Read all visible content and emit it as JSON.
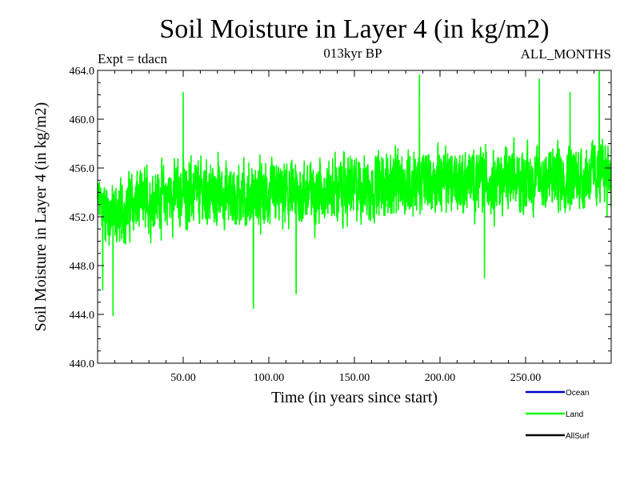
{
  "chart_data": {
    "type": "line",
    "title": "Soil Moisture in Layer 4 (in kg/m2)",
    "experiment_label": "Expt = tdacn",
    "period_label": "013kyr BP",
    "months_label": "ALL_MONTHS",
    "xlabel": "Time (in years since start)",
    "ylabel": "Soil Moisture in Layer 4 (in kg/m2)",
    "xlim": [
      0,
      300
    ],
    "ylim": [
      440,
      464
    ],
    "x_ticks": [
      50,
      100,
      150,
      200,
      250
    ],
    "x_tick_labels": [
      "50.00",
      "100.00",
      "150.00",
      "200.00",
      "250.00"
    ],
    "y_ticks": [
      440,
      444,
      448,
      452,
      456,
      460,
      464
    ],
    "y_tick_labels": [
      "440.0",
      "444.0",
      "448.0",
      "452.0",
      "456.0",
      "460.0",
      "464.0"
    ],
    "grid": false,
    "legend_position": "bottom-right",
    "series": [
      {
        "name": "Ocean",
        "color": "#0000cc",
        "values": []
      },
      {
        "name": "Land",
        "color": "#00ff00",
        "x_start": 0,
        "x_step": 0.0833,
        "trend_points": [
          [
            0,
            453.2
          ],
          [
            10,
            452.0
          ],
          [
            20,
            453.0
          ],
          [
            50,
            454.0
          ],
          [
            100,
            453.6
          ],
          [
            150,
            454.4
          ],
          [
            200,
            455.0
          ],
          [
            250,
            455.0
          ],
          [
            300,
            455.6
          ]
        ],
        "spread": 2.6,
        "extremes": [
          {
            "x": 9,
            "y": 443.9
          },
          {
            "x": 3,
            "y": 446.0
          },
          {
            "x": 91,
            "y": 444.5
          },
          {
            "x": 116,
            "y": 445.7
          },
          {
            "x": 226,
            "y": 447.0
          },
          {
            "x": 50,
            "y": 462.2
          },
          {
            "x": 188,
            "y": 463.6
          },
          {
            "x": 258,
            "y": 463.3
          },
          {
            "x": 293,
            "y": 463.9
          },
          {
            "x": 276,
            "y": 462.2
          }
        ]
      },
      {
        "name": "AllSurf",
        "color": "#000000",
        "values": []
      }
    ]
  }
}
